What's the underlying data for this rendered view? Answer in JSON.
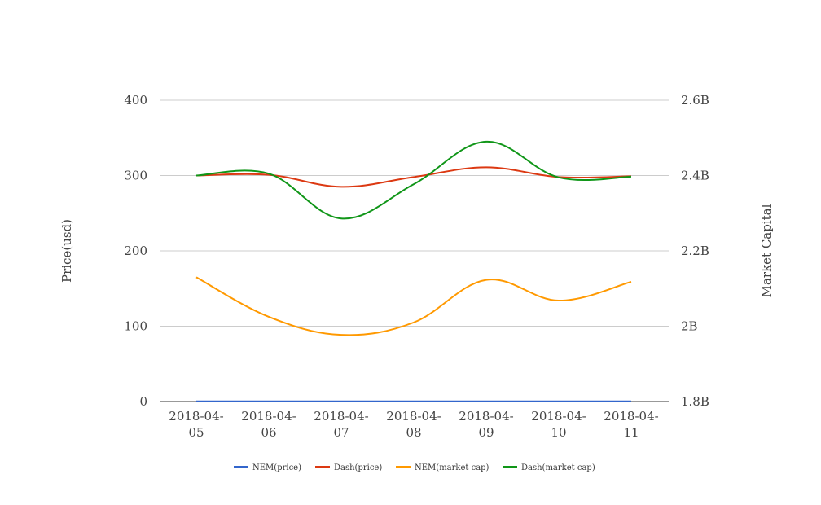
{
  "chart_data": {
    "type": "line",
    "categories": [
      "2018-04-05",
      "2018-04-06",
      "2018-04-07",
      "2018-04-08",
      "2018-04-09",
      "2018-04-10",
      "2018-04-11"
    ],
    "category_label_lines": [
      [
        "2018-04-",
        "05"
      ],
      [
        "2018-04-",
        "06"
      ],
      [
        "2018-04-",
        "07"
      ],
      [
        "2018-04-",
        "08"
      ],
      [
        "2018-04-",
        "09"
      ],
      [
        "2018-04-",
        "10"
      ],
      [
        "2018-04-",
        "11"
      ]
    ],
    "y_left": {
      "label": "Price(usd)",
      "range": [
        0,
        400
      ],
      "ticks": [
        0,
        100,
        200,
        300,
        400
      ],
      "tick_labels": [
        "0",
        "100",
        "200",
        "300",
        "400"
      ]
    },
    "y_right": {
      "label": "Market Capital",
      "range": [
        1800000000,
        2600000000
      ],
      "ticks": [
        1800000000,
        2000000000,
        2200000000,
        2400000000,
        2600000000
      ],
      "tick_labels": [
        "1.8B",
        "2B",
        "2.2B",
        "2.4B",
        "2.6B"
      ]
    },
    "grid": true,
    "legend_position": "bottom",
    "series": [
      {
        "name": "NEM(price)",
        "axis": "left",
        "color": "#3366cc",
        "values": [
          0.24,
          0.23,
          0.21,
          0.23,
          0.27,
          0.25,
          0.26
        ]
      },
      {
        "name": "Dash(price)",
        "axis": "left",
        "color": "#dc3912",
        "values": [
          300,
          301,
          285,
          298,
          311,
          298,
          299
        ]
      },
      {
        "name": "NEM(market cap)",
        "axis": "right",
        "color": "#ff9900",
        "values": [
          2130000000,
          2025000000,
          1977000000,
          2010000000,
          2123000000,
          2068000000,
          2118000000
        ]
      },
      {
        "name": "Dash(market cap)",
        "axis": "right",
        "color": "#109618",
        "values": [
          2400000000,
          2405000000,
          2286000000,
          2377000000,
          2490000000,
          2395000000,
          2397000000
        ]
      }
    ]
  }
}
